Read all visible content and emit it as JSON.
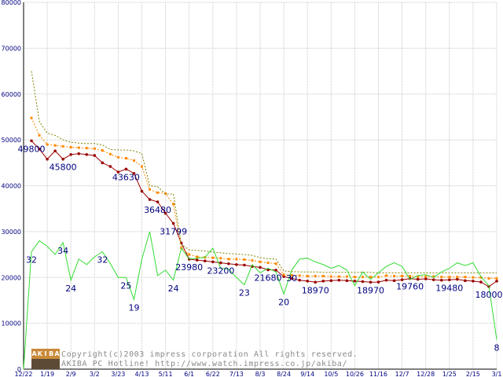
{
  "chart_data": {
    "type": "line",
    "ylim": [
      0,
      80000
    ],
    "y_ticks": [
      "0",
      "10000",
      "20000",
      "30000",
      "40000",
      "50000",
      "60000",
      "70000",
      "80000"
    ],
    "x_tick_labels": [
      "12/22",
      "1/19",
      "2/9",
      "3/2",
      "3/23",
      "4/13",
      "5/11",
      "6/1",
      "6/22",
      "7/13",
      "8/3",
      "8/24",
      "9/14",
      "10/5",
      "10/26",
      "11/16",
      "12/7",
      "12/28",
      "1/25",
      "2/15",
      "3/1"
    ],
    "grid": true,
    "series": [
      {
        "color": "#990000",
        "marker": "circle",
        "values": [
          null,
          49800,
          48000,
          45800,
          47600,
          45800,
          46800,
          47000,
          46800,
          46600,
          45000,
          44200,
          43000,
          43630,
          42700,
          38800,
          37000,
          36480,
          34000,
          31799,
          27500,
          23980,
          23800,
          23600,
          23400,
          23200,
          23000,
          22800,
          22700,
          22400,
          22200,
          21680,
          21600,
          20200,
          19800,
          19400,
          19200,
          18970,
          19200,
          19300,
          19400,
          19300,
          19200,
          19100,
          18970,
          19000,
          19400,
          19300,
          19500,
          19760,
          19600,
          19700,
          19500,
          19400,
          19480,
          19600,
          19300,
          19200,
          19000,
          18000,
          19200
        ]
      },
      {
        "color": "#ff8800",
        "marker": "square",
        "dashed": true,
        "values": [
          null,
          54800,
          51000,
          49000,
          48800,
          48600,
          48400,
          48300,
          48200,
          48100,
          47700,
          46900,
          46200,
          46000,
          45500,
          44200,
          39200,
          38500,
          38300,
          36000,
          26400,
          25000,
          24500,
          24400,
          24300,
          24200,
          24000,
          24000,
          23900,
          23700,
          23400,
          23200,
          23000,
          20600,
          20500,
          20400,
          20300,
          20300,
          20300,
          20200,
          20200,
          20200,
          20100,
          20100,
          20100,
          20100,
          20400,
          20300,
          20300,
          20300,
          20200,
          20200,
          20200,
          20100,
          20100,
          20100,
          20100,
          20000,
          20000,
          19800,
          19800
        ]
      },
      {
        "color": "#808000",
        "marker": "none",
        "dashed": true,
        "values": [
          null,
          65000,
          54000,
          51500,
          51000,
          50000,
          49500,
          49300,
          49200,
          49200,
          48900,
          47900,
          47800,
          47800,
          47600,
          47000,
          40000,
          39800,
          38200,
          38200,
          27200,
          26000,
          25900,
          25800,
          25500,
          25400,
          25200,
          25100,
          25000,
          24800,
          24300,
          24100,
          24000,
          21400,
          21300,
          21200,
          21200,
          21200,
          21100,
          21100,
          21100,
          21100,
          21100,
          21100,
          21100,
          21000,
          21000,
          21000,
          21000,
          21000,
          21000,
          21000,
          21000,
          21000,
          21000,
          21000,
          21000,
          21000,
          21000,
          21000,
          21000
        ]
      },
      {
        "color": "#33dd33",
        "marker": "none",
        "values": [
          0,
          25600,
          28000,
          26800,
          25000,
          27600,
          19400,
          24000,
          22800,
          24500,
          25600,
          23000,
          20000,
          20000,
          15200,
          24000,
          30000,
          20400,
          21600,
          19400,
          26400,
          24000,
          24200,
          24400,
          26400,
          22000,
          21800,
          20000,
          18400,
          22800,
          21000,
          22000,
          21200,
          16400,
          21600,
          24000,
          24200,
          23400,
          22800,
          22000,
          22600,
          21600,
          18200,
          21200,
          19600,
          21000,
          22400,
          23200,
          22400,
          19600,
          20400,
          20600,
          20000,
          21200,
          22000,
          23200,
          22600,
          23200,
          20200,
          18200,
          6400
        ]
      }
    ],
    "data_labels": [
      {
        "text": "49800",
        "x": 1,
        "y": 49800
      },
      {
        "text": "45800",
        "x": 5,
        "y": 45800
      },
      {
        "text": "43630",
        "x": 13,
        "y": 43630
      },
      {
        "text": "36480",
        "x": 17,
        "y": 36480
      },
      {
        "text": "31799",
        "x": 19,
        "y": 31799
      },
      {
        "text": "23980",
        "x": 21,
        "y": 23980
      },
      {
        "text": "23200",
        "x": 25,
        "y": 23200
      },
      {
        "text": "21680",
        "x": 31,
        "y": 21680
      },
      {
        "text": "18970",
        "x": 37,
        "y": 18970
      },
      {
        "text": "18970",
        "x": 44,
        "y": 18970
      },
      {
        "text": "19760",
        "x": 49,
        "y": 19760
      },
      {
        "text": "19480",
        "x": 54,
        "y": 19480
      },
      {
        "text": "18000",
        "x": 59,
        "y": 18000
      },
      {
        "text": "32",
        "x": 1,
        "y": 25600
      },
      {
        "text": "34",
        "x": 5,
        "y": 27600
      },
      {
        "text": "24",
        "x": 6,
        "y": 19400
      },
      {
        "text": "32",
        "x": 10,
        "y": 25600
      },
      {
        "text": "25",
        "x": 13,
        "y": 20000
      },
      {
        "text": "19",
        "x": 14,
        "y": 15200
      },
      {
        "text": "24",
        "x": 19,
        "y": 19400
      },
      {
        "text": "23",
        "x": 28,
        "y": 18400
      },
      {
        "text": "20",
        "x": 33,
        "y": 16400
      },
      {
        "text": "30",
        "x": 34,
        "y": 21600
      },
      {
        "text": "8",
        "x": 60,
        "y": 6400
      }
    ]
  },
  "footer": {
    "copyright_line1": "Copyright(c)2003 impress corporation All rights reserved.",
    "copyright_line2": "AKIBA PC Hotline!  http://www.watch.impress.co.jp/akiba/",
    "logo_text": "AKIBA"
  }
}
